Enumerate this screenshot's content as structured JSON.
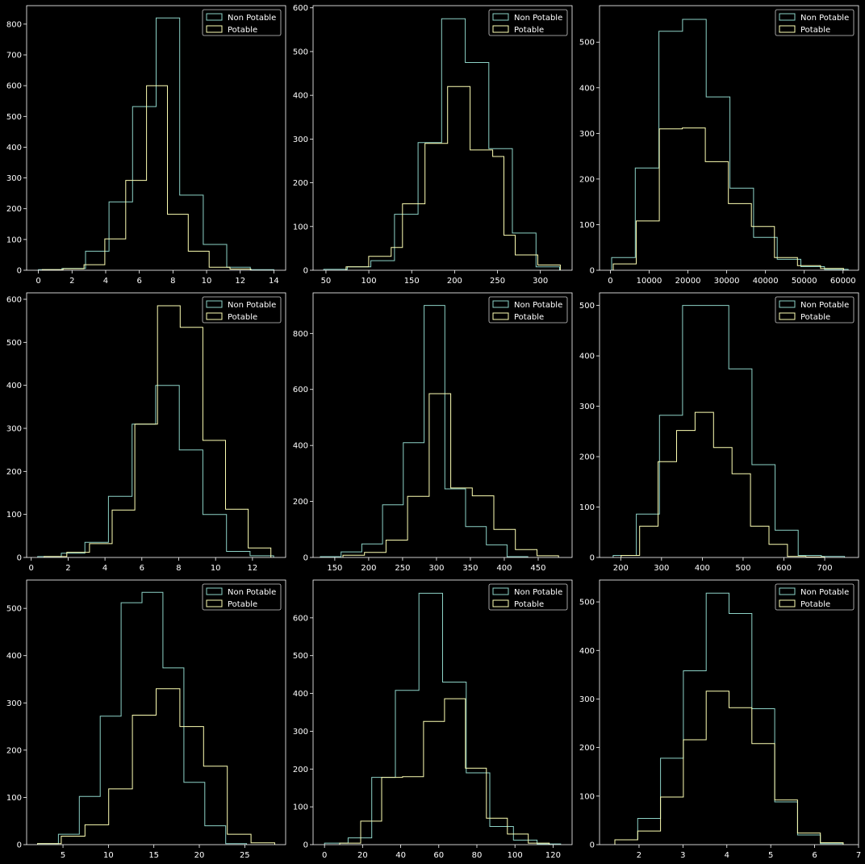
{
  "theme": {
    "background": "#000000",
    "axes_color": "#ffffff",
    "non_potable_color": "#8dd3c7",
    "potable_color": "#feffb3"
  },
  "chart_data": [
    {
      "type": "histogram",
      "legend": [
        "Non Potable",
        "Potable"
      ],
      "legend_loc": "upper right",
      "xlim": [
        -0.7,
        14.7
      ],
      "ylim": [
        0,
        860
      ],
      "xticks": [
        0,
        2,
        4,
        6,
        8,
        10,
        12,
        14
      ],
      "yticks": [
        0,
        100,
        200,
        300,
        400,
        500,
        600,
        700,
        800
      ],
      "series": [
        {
          "name": "Non Potable",
          "edges": [
            0,
            1.4,
            2.8,
            4.2,
            5.6,
            7.0,
            8.4,
            9.8,
            11.2,
            12.6,
            14.0
          ],
          "counts": [
            2,
            6,
            62,
            222,
            532,
            820,
            244,
            84,
            10,
            2
          ]
        },
        {
          "name": "Potable",
          "edges": [
            0.23,
            1.47,
            2.71,
            3.95,
            5.19,
            6.43,
            7.67,
            8.91,
            10.15,
            11.39,
            12.63
          ],
          "counts": [
            2,
            5,
            18,
            102,
            292,
            600,
            182,
            62,
            10,
            4
          ]
        }
      ]
    },
    {
      "type": "histogram",
      "legend": [
        "Non Potable",
        "Potable"
      ],
      "legend_loc": "upper right",
      "xlim": [
        35,
        337
      ],
      "ylim": [
        0,
        605
      ],
      "xticks": [
        50,
        100,
        150,
        200,
        250,
        300
      ],
      "yticks": [
        0,
        100,
        200,
        300,
        400,
        500,
        600
      ],
      "series": [
        {
          "name": "Non Potable",
          "edges": [
            47.4,
            74.9,
            102.4,
            129.9,
            157.4,
            184.9,
            212.4,
            239.9,
            267.4,
            294.9,
            322.4
          ],
          "counts": [
            2,
            8,
            22,
            128,
            292,
            575,
            475,
            278,
            85,
            8
          ]
        },
        {
          "name": "Potable",
          "edges": [
            73.5,
            86.6,
            99.8,
            112.9,
            126.1,
            139.2,
            152.4,
            165.5,
            178.7,
            191.8,
            205.0,
            218.1,
            231.3,
            244.4,
            257.5,
            270.7,
            283.8,
            297.0,
            310.1,
            323.3
          ],
          "counts": [
            8,
            8,
            32,
            32,
            52,
            152,
            152,
            290,
            290,
            420,
            420,
            275,
            275,
            260,
            80,
            35,
            35,
            12,
            12
          ]
        }
      ]
    },
    {
      "type": "histogram",
      "legend": [
        "Non Potable",
        "Potable"
      ],
      "legend_loc": "upper right",
      "xlim": [
        -2800,
        64000
      ],
      "ylim": [
        0,
        580
      ],
      "xticks": [
        0,
        10000,
        20000,
        30000,
        40000,
        50000,
        60000
      ],
      "yticks": [
        0,
        100,
        200,
        300,
        400,
        500
      ],
      "series": [
        {
          "name": "Non Potable",
          "edges": [
            320,
            6420,
            12520,
            18620,
            24720,
            30820,
            36920,
            43020,
            49120,
            55220,
            61320
          ],
          "counts": [
            28,
            224,
            524,
            550,
            380,
            180,
            72,
            24,
            8,
            2
          ]
        },
        {
          "name": "Potable",
          "edges": [
            730,
            6670,
            12610,
            18550,
            24490,
            30430,
            36370,
            42310,
            48250,
            54190,
            60130
          ],
          "counts": [
            14,
            108,
            310,
            312,
            238,
            146,
            96,
            28,
            10,
            4
          ]
        }
      ]
    },
    {
      "type": "histogram",
      "legend": [
        "Non Potable",
        "Potable"
      ],
      "legend_loc": "upper right",
      "xlim": [
        -0.25,
        13.8
      ],
      "ylim": [
        0,
        615
      ],
      "xticks": [
        0,
        2,
        4,
        6,
        8,
        10,
        12
      ],
      "yticks": [
        0,
        100,
        200,
        300,
        400,
        500,
        600
      ],
      "series": [
        {
          "name": "Non Potable",
          "edges": [
            0.35,
            1.63,
            2.91,
            4.19,
            5.47,
            6.75,
            8.03,
            9.31,
            10.59,
            11.87,
            13.15
          ],
          "counts": [
            2,
            10,
            35,
            142,
            310,
            400,
            250,
            100,
            14,
            4
          ]
        },
        {
          "name": "Potable",
          "edges": [
            0.7,
            1.93,
            3.16,
            4.39,
            5.62,
            6.85,
            8.08,
            9.31,
            10.54,
            11.77,
            13.0
          ],
          "counts": [
            2,
            12,
            32,
            110,
            310,
            585,
            535,
            272,
            112,
            22
          ]
        }
      ]
    },
    {
      "type": "histogram",
      "legend": [
        "Non Potable",
        "Potable"
      ],
      "legend_loc": "upper right",
      "xlim": [
        118,
        500
      ],
      "ylim": [
        0,
        945
      ],
      "xticks": [
        150,
        200,
        250,
        300,
        350,
        400,
        450
      ],
      "yticks": [
        0,
        200,
        400,
        600,
        800
      ],
      "series": [
        {
          "name": "Non Potable",
          "edges": [
            128.7,
            159.3,
            189.9,
            220.5,
            251.1,
            281.7,
            312.3,
            342.9,
            373.5,
            404.1,
            434.7
          ],
          "counts": [
            3,
            20,
            48,
            188,
            410,
            900,
            245,
            110,
            45,
            3
          ]
        },
        {
          "name": "Potable",
          "edges": [
            162,
            193.8,
            225.6,
            257.4,
            289.2,
            321.0,
            352.8,
            384.6,
            416.4,
            448.2,
            480.0
          ],
          "counts": [
            8,
            18,
            62,
            218,
            585,
            248,
            220,
            100,
            28,
            6
          ]
        }
      ]
    },
    {
      "type": "histogram",
      "legend": [
        "Non Potable",
        "Potable"
      ],
      "legend_loc": "upper right",
      "xlim": [
        148,
        783
      ],
      "ylim": [
        0,
        525
      ],
      "xticks": [
        200,
        300,
        400,
        500,
        600,
        700
      ],
      "yticks": [
        0,
        100,
        200,
        300,
        400,
        500
      ],
      "series": [
        {
          "name": "Non Potable",
          "edges": [
            181.5,
            238.2,
            294.9,
            351.6,
            408.3,
            465.0,
            521.7,
            578.4,
            635.1,
            691.8,
            748.5
          ],
          "counts": [
            4,
            86,
            282,
            500,
            500,
            374,
            184,
            54,
            4,
            2
          ]
        },
        {
          "name": "Potable",
          "edges": [
            201.0,
            246.3,
            291.6,
            336.9,
            382.2,
            427.5,
            472.8,
            518.1,
            563.4,
            608.7,
            654.0,
            699.3
          ],
          "counts": [
            4,
            62,
            190,
            252,
            288,
            218,
            166,
            62,
            26,
            2,
            1
          ]
        }
      ]
    },
    {
      "type": "histogram",
      "legend": [
        "Non Potable",
        "Potable"
      ],
      "legend_loc": "upper right",
      "xlim": [
        1,
        29.5
      ],
      "ylim": [
        0,
        560
      ],
      "xticks": [
        5,
        10,
        15,
        20,
        25
      ],
      "yticks": [
        0,
        100,
        200,
        300,
        400,
        500
      ],
      "series": [
        {
          "name": "Non Potable",
          "edges": [
            2.2,
            4.5,
            6.8,
            9.1,
            11.4,
            13.7,
            16.0,
            18.3,
            20.6,
            22.9,
            25.2
          ],
          "counts": [
            2,
            22,
            102,
            272,
            512,
            534,
            374,
            132,
            40,
            2
          ]
        },
        {
          "name": "Potable",
          "edges": [
            2.2,
            4.81,
            7.42,
            10.03,
            12.64,
            15.25,
            17.86,
            20.47,
            23.08,
            25.69,
            28.3
          ],
          "counts": [
            2,
            18,
            42,
            118,
            274,
            330,
            250,
            166,
            22,
            4
          ]
        }
      ]
    },
    {
      "type": "histogram",
      "legend": [
        "Non Potable",
        "Potable"
      ],
      "legend_loc": "upper right",
      "xlim": [
        -6,
        130
      ],
      "ylim": [
        0,
        700
      ],
      "xticks": [
        0,
        20,
        40,
        60,
        80,
        100,
        120
      ],
      "yticks": [
        0,
        100,
        200,
        300,
        400,
        500,
        600
      ],
      "series": [
        {
          "name": "Non Potable",
          "edges": [
            0,
            12.4,
            24.8,
            37.2,
            49.6,
            62.0,
            74.4,
            86.8,
            99.2,
            111.6,
            124.0
          ],
          "counts": [
            4,
            18,
            178,
            408,
            665,
            430,
            190,
            48,
            12,
            2
          ]
        },
        {
          "name": "Potable",
          "edges": [
            8,
            19.0,
            30.0,
            41.0,
            52.0,
            63.0,
            74.0,
            85.0,
            96.0,
            107.0,
            118.0
          ],
          "counts": [
            4,
            62,
            178,
            180,
            326,
            386,
            202,
            70,
            28,
            4
          ]
        }
      ]
    },
    {
      "type": "histogram",
      "legend": [
        "Non Potable",
        "Potable"
      ],
      "legend_loc": "upper right",
      "xlim": [
        1.1,
        7.0
      ],
      "ylim": [
        0,
        545
      ],
      "xticks": [
        2,
        3,
        4,
        5,
        6,
        7
      ],
      "yticks": [
        0,
        100,
        200,
        300,
        400,
        500
      ],
      "series": [
        {
          "name": "Non Potable",
          "edges": [
            1.45,
            1.97,
            2.49,
            3.01,
            3.53,
            4.05,
            4.57,
            5.09,
            5.61,
            6.13,
            6.65
          ],
          "counts": [
            10,
            54,
            178,
            358,
            518,
            476,
            280,
            88,
            20,
            2
          ]
        },
        {
          "name": "Potable",
          "edges": [
            1.45,
            1.97,
            2.49,
            3.01,
            3.53,
            4.05,
            4.57,
            5.09,
            5.61,
            6.13,
            6.65
          ],
          "counts": [
            10,
            28,
            98,
            216,
            316,
            282,
            208,
            92,
            24,
            4
          ]
        }
      ]
    }
  ]
}
